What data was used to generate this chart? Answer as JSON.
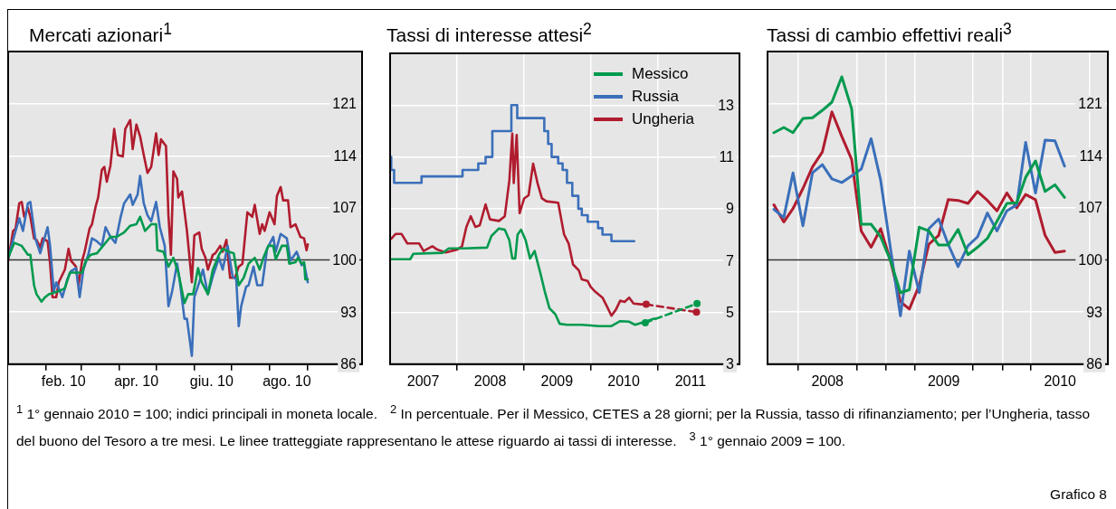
{
  "chart_data": [
    {
      "type": "line",
      "title": "Mercati azionari$^{1}$",
      "xlim": [
        "2010-01-01",
        "2010-10-15"
      ],
      "xticks": [
        {
          "value": "2010-02-01",
          "label": null
        },
        {
          "value": "2010-02-15",
          "label": "feb. 10"
        },
        {
          "value": "2010-03-01",
          "label": null
        },
        {
          "value": "2010-04-01",
          "label": null
        },
        {
          "value": "2010-04-15",
          "label": "apr. 10"
        },
        {
          "value": "2010-05-01",
          "label": null
        },
        {
          "value": "2010-06-01",
          "label": null
        },
        {
          "value": "2010-06-15",
          "label": "giu. 10"
        },
        {
          "value": "2010-07-01",
          "label": null
        },
        {
          "value": "2010-08-01",
          "label": null
        },
        {
          "value": "2010-08-15",
          "label": "ago. 10"
        },
        {
          "value": "2010-09-01",
          "label": null
        }
      ],
      "ylim": [
        86,
        128
      ],
      "yticks": [
        86,
        93,
        100,
        107,
        114,
        121
      ],
      "grid": "y",
      "ref_lines": [
        {
          "axis": "y",
          "value": 100,
          "color": "#333333"
        }
      ],
      "annotations": [
        "$^{1}$ 1° gennaio 2010 = 100; indici principali in moneta locale.",
        "Grafico 8"
      ],
      "series": [
        {
          "color": "#009a4e",
          "x": [
            "2010-01-01",
            "2010-01-06",
            "2010-01-12",
            "2010-01-17",
            "2010-01-19",
            "2010-01-22",
            "2010-01-24",
            "2010-01-28",
            "2010-01-31",
            "2010-02-03",
            "2010-02-07",
            "2010-02-11",
            "2010-02-16",
            "2010-02-20",
            "2010-02-25",
            "2010-03-02",
            "2010-03-05",
            "2010-03-09",
            "2010-03-14",
            "2010-03-19",
            "2010-03-25",
            "2010-03-30",
            "2010-04-05",
            "2010-04-10",
            "2010-04-15",
            "2010-04-18",
            "2010-04-22",
            "2010-04-27",
            "2010-05-01",
            "2010-05-02",
            "2010-05-07",
            "2010-05-11",
            "2010-05-15",
            "2010-05-19",
            "2010-05-24",
            "2010-05-27",
            "2010-05-31",
            "2010-06-04",
            "2010-06-07",
            "2010-06-12",
            "2010-06-16",
            "2010-06-21",
            "2010-06-24",
            "2010-06-29",
            "2010-07-03",
            "2010-07-07",
            "2010-07-11",
            "2010-07-15",
            "2010-07-20",
            "2010-07-24",
            "2010-07-27",
            "2010-07-31",
            "2010-08-04",
            "2010-08-06",
            "2010-08-11",
            "2010-08-15",
            "2010-08-17",
            "2010-08-22",
            "2010-08-24",
            "2010-08-27",
            "2010-08-29",
            "2010-08-30",
            "2010-09-01"
          ],
          "values": [
            100.3,
            102.3,
            101.9,
            100.7,
            100.7,
            96.6,
            95.4,
            94.4,
            95.0,
            95.4,
            95.6,
            95.8,
            96.2,
            98.3,
            98.3,
            98.3,
            99.9,
            100.7,
            100.9,
            101.9,
            103.1,
            103.1,
            103.7,
            104.6,
            104.8,
            105.8,
            103.9,
            104.8,
            104.8,
            101.3,
            101.1,
            99.1,
            100.3,
            98.3,
            94.2,
            95.4,
            95.4,
            98.9,
            97.0,
            95.4,
            98.7,
            100.7,
            101.5,
            101.1,
            100.9,
            96.6,
            97.6,
            99.5,
            100.3,
            98.7,
            100.3,
            101.9,
            101.9,
            100.1,
            101.9,
            101.9,
            99.5,
            99.7,
            100.3,
            99.5,
            99.7,
            97.4,
            97.4
          ]
        },
        {
          "color": "#3a6fba",
          "x": [
            "2010-01-01",
            "2010-01-05",
            "2010-01-10",
            "2010-01-13",
            "2010-01-17",
            "2010-01-19",
            "2010-01-23",
            "2010-01-27",
            "2010-02-02",
            "2010-02-04",
            "2010-02-07",
            "2010-02-09",
            "2010-02-14",
            "2010-02-18",
            "2010-02-21",
            "2010-02-25",
            "2010-02-28",
            "2010-03-03",
            "2010-03-07",
            "2010-03-10",
            "2010-03-14",
            "2010-03-18",
            "2010-03-21",
            "2010-03-25",
            "2010-03-29",
            "2010-04-02",
            "2010-04-05",
            "2010-04-10",
            "2010-04-12",
            "2010-04-16",
            "2010-04-18",
            "2010-04-21",
            "2010-04-24",
            "2010-04-27",
            "2010-05-01",
            "2010-05-04",
            "2010-05-08",
            "2010-05-11",
            "2010-05-14",
            "2010-05-18",
            "2010-05-20",
            "2010-05-24",
            "2010-05-26",
            "2010-05-30",
            "2010-06-01",
            "2010-06-05",
            "2010-06-08",
            "2010-06-12",
            "2010-06-16",
            "2010-06-21",
            "2010-06-24",
            "2010-06-28",
            "2010-07-02",
            "2010-07-05",
            "2010-07-07",
            "2010-07-09",
            "2010-07-13",
            "2010-07-15",
            "2010-07-19",
            "2010-07-22",
            "2010-07-26",
            "2010-07-30",
            "2010-08-04",
            "2010-08-06",
            "2010-08-10",
            "2010-08-15",
            "2010-08-18",
            "2010-08-23",
            "2010-08-27",
            "2010-08-29",
            "2010-09-01"
          ],
          "values": [
            100.1,
            102.7,
            105.6,
            103.9,
            107.6,
            107.8,
            102.9,
            100.9,
            104.4,
            101.9,
            95.8,
            97.0,
            95.0,
            97.4,
            98.5,
            98.9,
            95.0,
            98.7,
            100.7,
            102.9,
            102.5,
            101.9,
            104.4,
            103.1,
            102.3,
            105.6,
            107.6,
            108.8,
            107.4,
            108.8,
            111.3,
            107.6,
            106.0,
            105.2,
            107.8,
            104.4,
            101.9,
            93.8,
            95.8,
            99.5,
            97.4,
            92.1,
            92.1,
            87.1,
            95.0,
            97.0,
            98.7,
            95.4,
            97.8,
            100.3,
            98.7,
            101.9,
            97.8,
            97.4,
            91.1,
            93.8,
            96.4,
            96.6,
            99.1,
            96.6,
            96.6,
            101.5,
            103.1,
            101.1,
            103.5,
            102.9,
            99.9,
            101.1,
            99.3,
            99.5,
            97.0
          ]
        },
        {
          "color": "#b01c2e",
          "x": [
            "2010-01-01",
            "2010-01-05",
            "2010-01-07",
            "2010-01-10",
            "2010-01-12",
            "2010-01-14",
            "2010-01-17",
            "2010-01-19",
            "2010-01-22",
            "2010-01-24",
            "2010-01-27",
            "2010-01-29",
            "2010-02-02",
            "2010-02-04",
            "2010-02-06",
            "2010-02-09",
            "2010-02-11",
            "2010-02-16",
            "2010-02-19",
            "2010-02-21",
            "2010-02-25",
            "2010-02-27",
            "2010-03-02",
            "2010-03-04",
            "2010-03-08",
            "2010-03-10",
            "2010-03-13",
            "2010-03-15",
            "2010-03-18",
            "2010-03-20",
            "2010-03-22",
            "2010-03-25",
            "2010-03-28",
            "2010-03-31",
            "2010-04-04",
            "2010-04-06",
            "2010-04-10",
            "2010-04-12",
            "2010-04-15",
            "2010-04-18",
            "2010-04-21",
            "2010-04-24",
            "2010-04-27",
            "2010-05-01",
            "2010-05-03",
            "2010-05-05",
            "2010-05-09",
            "2010-05-11",
            "2010-05-13",
            "2010-05-15",
            "2010-05-18",
            "2010-05-19",
            "2010-05-22",
            "2010-05-26",
            "2010-05-30",
            "2010-06-01",
            "2010-06-05",
            "2010-06-07",
            "2010-06-10",
            "2010-06-12",
            "2010-06-16",
            "2010-06-18",
            "2010-06-22",
            "2010-06-24",
            "2010-06-27",
            "2010-06-30",
            "2010-07-04",
            "2010-07-07",
            "2010-07-10",
            "2010-07-14",
            "2010-07-18",
            "2010-07-20",
            "2010-07-24",
            "2010-07-26",
            "2010-07-28",
            "2010-08-01",
            "2010-08-05",
            "2010-08-07",
            "2010-08-10",
            "2010-08-12",
            "2010-08-16",
            "2010-08-18",
            "2010-08-22",
            "2010-08-26",
            "2010-08-29",
            "2010-08-31",
            "2010-09-01"
          ],
          "values": [
            99.9,
            103.9,
            104.2,
            107.6,
            107.8,
            105.8,
            107.0,
            105.8,
            102.9,
            102.7,
            101.7,
            102.9,
            102.5,
            99.5,
            95.0,
            95.0,
            97.0,
            98.7,
            101.5,
            99.9,
            99.1,
            96.6,
            99.9,
            101.1,
            104.2,
            104.8,
            107.2,
            108.4,
            112.1,
            112.5,
            110.5,
            112.7,
            117.6,
            114.1,
            113.9,
            117.6,
            118.8,
            114.9,
            118.2,
            116.6,
            114.1,
            111.7,
            112.5,
            117.0,
            114.1,
            116.2,
            115.3,
            106.0,
            100.7,
            111.9,
            110.9,
            108.4,
            109.2,
            103.9,
            97.0,
            103.3,
            103.7,
            101.5,
            100.3,
            98.7,
            100.7,
            100.9,
            101.9,
            101.1,
            102.7,
            97.6,
            97.6,
            99.1,
            99.5,
            106.4,
            105.8,
            107.4,
            103.5,
            104.8,
            103.9,
            106.4,
            104.8,
            108.6,
            109.8,
            108.0,
            108.0,
            104.4,
            104.8,
            103.1,
            102.9,
            101.3,
            102.1
          ]
        }
      ]
    },
    {
      "type": "line",
      "title": "Tassi di interesse attesi$^{2}$",
      "legend": "top right",
      "xlim": [
        "2007-01-01",
        "2012-03-25"
      ],
      "xticks": [
        {
          "value": "2007-07-01",
          "label": "2007"
        },
        {
          "value": "2008-01-01",
          "label": null
        },
        {
          "value": "2008-07-01",
          "label": "2008"
        },
        {
          "value": "2009-01-01",
          "label": null
        },
        {
          "value": "2009-07-01",
          "label": "2009"
        },
        {
          "value": "2010-01-01",
          "label": null
        },
        {
          "value": "2010-07-01",
          "label": "2010"
        },
        {
          "value": "2011-01-01",
          "label": null
        },
        {
          "value": "2011-07-01",
          "label": "2011"
        }
      ],
      "ylim": [
        3,
        15
      ],
      "yticks": [
        3,
        5,
        7,
        9,
        11,
        13
      ],
      "grid": true,
      "annotations": [
        "$^{2}$ In percentuale. Per il Messico, CETES a 28 giorni; per la Russia, tasso di rifinanziamento; per l’Ungheria, tasso del buono del Tesoro a tre mesi. Le linee tratteggiate rappresentano le attese riguardo ai tassi di interesse."
      ],
      "series": [
        {
          "name": "Messico",
          "color": "#009a4e",
          "x": [
            "2007-01-07",
            "2007-04-21",
            "2007-05-08",
            "2007-10-16",
            "2007-11-18",
            "2008-02-06",
            "2008-06-14",
            "2008-07-08",
            "2008-08-18",
            "2008-09-19",
            "2008-10-14",
            "2008-10-30",
            "2008-11-15",
            "2008-11-28",
            "2008-12-17",
            "2009-01-11",
            "2009-02-04",
            "2009-03-01",
            "2009-04-02",
            "2009-04-26",
            "2009-05-21",
            "2009-06-22",
            "2009-07-16",
            "2009-08-25",
            "2009-11-14",
            "2010-02-19",
            "2010-04-25",
            "2010-06-12",
            "2010-07-31",
            "2010-09-01",
            "2010-11-04",
            "2010-12-15"
          ],
          "values": [
            7.05,
            7.05,
            7.26,
            7.3,
            7.47,
            7.47,
            7.5,
            7.95,
            8.24,
            8.19,
            7.78,
            7.08,
            7.08,
            8.0,
            8.19,
            7.78,
            7.08,
            7.37,
            6.5,
            5.8,
            5.16,
            4.93,
            4.56,
            4.52,
            4.52,
            4.47,
            4.47,
            4.66,
            4.64,
            4.52,
            4.66,
            4.76
          ]
        },
        {
          "name": "Russia",
          "type": "step",
          "color": "#3a6fba",
          "x": [
            "2007-01-07",
            "2007-01-23",
            "2007-06-22",
            "2008-02-01",
            "2008-04-27",
            "2008-06-06",
            "2008-07-13",
            "2008-10-25",
            "2008-11-26",
            "2009-04-23",
            "2009-05-14",
            "2009-06-02",
            "2009-07-08",
            "2009-08-01",
            "2009-08-25",
            "2009-09-23",
            "2009-10-26",
            "2009-11-14",
            "2009-12-16",
            "2010-02-11",
            "2010-03-07",
            "2010-04-25",
            "2010-05-27",
            "2010-08-28"
          ],
          "values": [
            11,
            10.5,
            10,
            10.25,
            10.5,
            10.75,
            11,
            12,
            13,
            12.5,
            12,
            11.5,
            11,
            10.75,
            10.5,
            10,
            9.5,
            9,
            8.75,
            8.5,
            8.25,
            8,
            7.75,
            7.75
          ]
        },
        {
          "name": "Ungheria",
          "color": "#b01c2e",
          "x": [
            "2007-01-07",
            "2007-02-01",
            "2007-03-04",
            "2007-04-05",
            "2007-06-09",
            "2007-07-03",
            "2007-08-20",
            "2007-09-14",
            "2007-11-01",
            "2008-01-05",
            "2008-01-29",
            "2008-02-22",
            "2008-03-17",
            "2008-04-11",
            "2008-05-05",
            "2008-06-06",
            "2008-06-30",
            "2008-08-18",
            "2008-09-19",
            "2008-10-14",
            "2008-10-30",
            "2008-11-07",
            "2008-11-23",
            "2008-12-09",
            "2009-01-03",
            "2009-01-27",
            "2009-02-21",
            "2009-03-17",
            "2009-04-10",
            "2009-05-04",
            "2009-07-08",
            "2009-08-09",
            "2009-09-03",
            "2009-09-27",
            "2009-10-29",
            "2009-11-14",
            "2009-12-16",
            "2010-01-02",
            "2010-01-26",
            "2010-03-07",
            "2010-04-01",
            "2010-04-25",
            "2010-05-19",
            "2010-06-12",
            "2010-07-06",
            "2010-07-31",
            "2010-08-24",
            "2010-10-03",
            "2010-11-01"
          ],
          "values": [
            7.84,
            8.03,
            8.03,
            7.66,
            7.66,
            7.37,
            7.55,
            7.43,
            7.31,
            7.43,
            7.55,
            8.3,
            8.71,
            8.3,
            8.36,
            9.17,
            8.59,
            8.53,
            8.71,
            10.1,
            11.9,
            9.99,
            11.85,
            8.83,
            9.4,
            9.52,
            10.74,
            9.99,
            9.4,
            9.29,
            9.23,
            8.01,
            7.66,
            6.85,
            6.62,
            6.27,
            6.21,
            5.98,
            5.8,
            5.57,
            5.22,
            4.87,
            5.1,
            5.45,
            5.4,
            5.57,
            5.34,
            5.31,
            5.31
          ]
        },
        {
          "color": "#009a4e",
          "line_style": "dashed",
          "marker": "circle",
          "x": [
            "2010-10-27",
            "2011-08-06"
          ],
          "values": [
            4.6,
            5.34
          ]
        },
        {
          "color": "#b01c2e",
          "line_style": "dashed",
          "marker": "circle",
          "x": [
            "2010-11-01",
            "2011-08-03"
          ],
          "values": [
            5.31,
            5.01
          ]
        }
      ]
    },
    {
      "type": "line",
      "title": "Tassi di cambio effettivi reali$^{3}$",
      "xlim": [
        "2007-12-26",
        "2010-11-28"
      ],
      "xticks": [
        {
          "value": "2008-04-01",
          "label": null
        },
        {
          "value": "2008-07-01",
          "label": "2008"
        },
        {
          "value": "2008-10-01",
          "label": null
        },
        {
          "value": "2009-01-01",
          "label": null
        },
        {
          "value": "2009-04-01",
          "label": null
        },
        {
          "value": "2009-07-01",
          "label": "2009"
        },
        {
          "value": "2009-10-01",
          "label": null
        },
        {
          "value": "2010-01-01",
          "label": null
        },
        {
          "value": "2010-04-01",
          "label": null
        },
        {
          "value": "2010-07-01",
          "label": "2010"
        },
        {
          "value": "2010-10-01",
          "label": null
        }
      ],
      "ylim": [
        86,
        128
      ],
      "yticks": [
        86,
        93,
        100,
        107,
        114,
        121
      ],
      "grid": true,
      "ref_lines": [
        {
          "axis": "y",
          "value": 100,
          "color": "#333333"
        }
      ],
      "annotations": [
        "$^{3}$ 1° gennaio 2009 = 100."
      ],
      "x": [
        "2008-01-15",
        "2008-02-15",
        "2008-03-15",
        "2008-04-15",
        "2008-05-15",
        "2008-06-15",
        "2008-07-15",
        "2008-08-15",
        "2008-09-15",
        "2008-10-15",
        "2008-11-15",
        "2008-12-15",
        "2009-01-15",
        "2009-02-15",
        "2009-03-15",
        "2009-04-15",
        "2009-05-15",
        "2009-06-15",
        "2009-07-15",
        "2009-08-15",
        "2009-09-15",
        "2009-10-15",
        "2009-11-15",
        "2009-12-15",
        "2010-01-15",
        "2010-02-15",
        "2010-03-15",
        "2010-04-15",
        "2010-05-15",
        "2010-06-15",
        "2010-07-15"
      ],
      "series": [
        {
          "color": "#009a4e",
          "values": [
            117.1,
            117.8,
            117.1,
            119.0,
            119.1,
            120.1,
            121.2,
            124.6,
            120.3,
            104.8,
            104.8,
            103.1,
            99.9,
            95.6,
            96.0,
            104.4,
            103.9,
            102.0,
            102.0,
            104.1,
            100.7,
            101.7,
            102.9,
            105.2,
            107.6,
            107.7,
            111.1,
            113.3,
            109.2,
            110.1,
            108.4
          ]
        },
        {
          "color": "#3a6fba",
          "values": [
            106.8,
            105.7,
            111.7,
            104.6,
            111.7,
            112.8,
            110.9,
            110.4,
            111.3,
            112.2,
            116.3,
            110.7,
            101.5,
            92.5,
            101.2,
            95.6,
            104.2,
            105.5,
            102.1,
            99.1,
            101.9,
            103.1,
            106.3,
            103.9,
            106.6,
            107.4,
            115.8,
            109.0,
            116.1,
            116.0,
            112.6
          ]
        },
        {
          "color": "#b01c2e",
          "values": [
            107.4,
            105.1,
            106.9,
            109.6,
            112.5,
            114.5,
            119.9,
            116.6,
            113.5,
            103.9,
            101.7,
            104.2,
            99.9,
            94.4,
            93.4,
            96.6,
            102.1,
            103.3,
            108.1,
            108.0,
            107.6,
            109.2,
            108.0,
            106.6,
            109.0,
            107.0,
            108.8,
            108.1,
            103.3,
            101.0,
            101.2
          ]
        }
      ]
    }
  ]
}
